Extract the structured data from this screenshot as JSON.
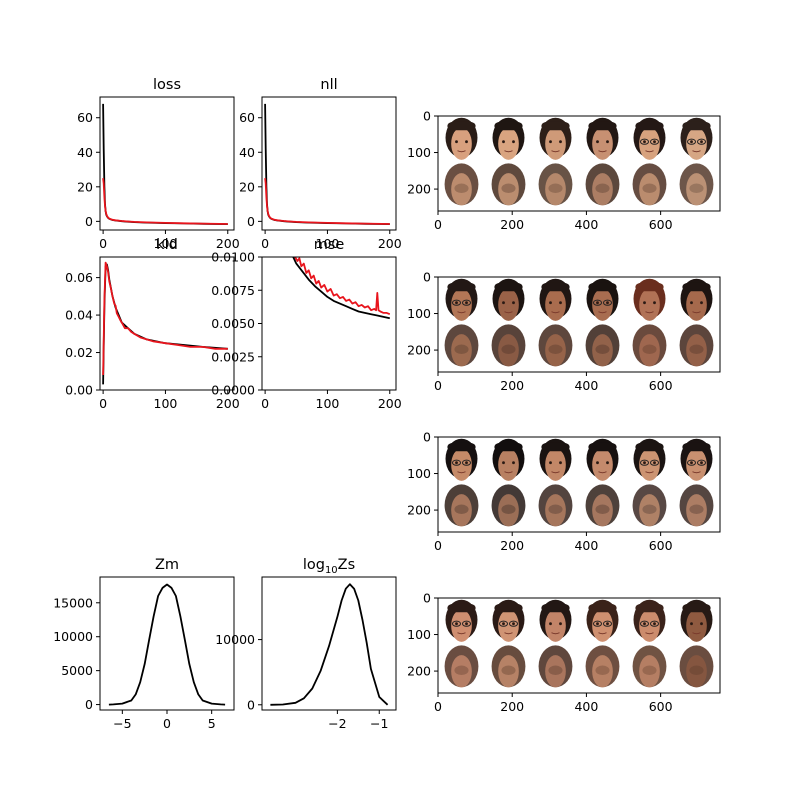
{
  "chart_data": [
    {
      "id": "loss",
      "type": "line",
      "title": "loss",
      "xlim": [
        -5,
        210
      ],
      "ylim": [
        -5,
        72
      ],
      "xticks": [
        0,
        100,
        200
      ],
      "yticks": [
        0,
        20,
        40,
        60
      ],
      "series": [
        {
          "color": "#000000",
          "x": [
            0,
            1,
            2,
            3,
            4,
            5,
            6,
            8,
            10,
            15,
            20,
            30,
            40,
            50,
            70,
            100,
            130,
            160,
            200
          ],
          "y": [
            68,
            42,
            20,
            10,
            6,
            4,
            3,
            2,
            1.5,
            0.8,
            0.5,
            0.1,
            -0.2,
            -0.4,
            -0.7,
            -1.0,
            -1.2,
            -1.4,
            -1.6
          ]
        },
        {
          "color": "#e8141c",
          "x": [
            0,
            1,
            2,
            3,
            4,
            5,
            6,
            8,
            10,
            15,
            20,
            30,
            40,
            50,
            70,
            100,
            130,
            160,
            200
          ],
          "y": [
            25,
            22,
            14,
            9,
            6,
            4.5,
            3.2,
            2.2,
            1.6,
            0.9,
            0.6,
            0.2,
            -0.1,
            -0.3,
            -0.6,
            -0.9,
            -1.1,
            -1.3,
            -1.5
          ]
        }
      ]
    },
    {
      "id": "nll",
      "type": "line",
      "title": "nll",
      "xlim": [
        -5,
        210
      ],
      "ylim": [
        -5,
        72
      ],
      "xticks": [
        0,
        100,
        200
      ],
      "yticks": [
        0,
        20,
        40,
        60
      ],
      "series": [
        {
          "color": "#000000",
          "x": [
            0,
            1,
            2,
            3,
            4,
            5,
            6,
            8,
            10,
            15,
            20,
            30,
            40,
            50,
            70,
            100,
            130,
            160,
            200
          ],
          "y": [
            68,
            42,
            20,
            10,
            6,
            4,
            3,
            2,
            1.5,
            0.8,
            0.5,
            0.1,
            -0.2,
            -0.4,
            -0.7,
            -1.0,
            -1.2,
            -1.4,
            -1.6
          ]
        },
        {
          "color": "#e8141c",
          "x": [
            0,
            1,
            2,
            3,
            4,
            5,
            6,
            8,
            10,
            15,
            20,
            30,
            40,
            50,
            70,
            100,
            130,
            160,
            200
          ],
          "y": [
            25,
            22,
            14,
            9,
            6,
            4.5,
            3.2,
            2.2,
            1.6,
            0.9,
            0.6,
            0.2,
            -0.1,
            -0.3,
            -0.6,
            -0.9,
            -1.1,
            -1.3,
            -1.5
          ]
        }
      ]
    },
    {
      "id": "kld",
      "type": "line",
      "title": "kld",
      "xlim": [
        -5,
        210
      ],
      "ylim": [
        0,
        0.071
      ],
      "xticks": [
        0,
        100,
        200
      ],
      "yticks": [
        0.0,
        0.02,
        0.04,
        0.06
      ],
      "ytick_labels": [
        "0.00",
        "0.02",
        "0.04",
        "0.06"
      ],
      "series": [
        {
          "color": "#000000",
          "x": [
            0,
            2,
            4,
            6,
            8,
            10,
            15,
            20,
            25,
            30,
            40,
            50,
            70,
            100,
            130,
            160,
            200
          ],
          "y": [
            0.003,
            0.045,
            0.066,
            0.067,
            0.064,
            0.059,
            0.05,
            0.044,
            0.04,
            0.036,
            0.033,
            0.03,
            0.027,
            0.025,
            0.024,
            0.023,
            0.022
          ]
        },
        {
          "color": "#e8141c",
          "x": [
            0,
            2,
            4,
            6,
            8,
            10,
            12,
            15,
            18,
            20,
            22,
            25,
            28,
            30,
            35,
            40,
            45,
            50,
            60,
            70,
            80,
            100,
            120,
            140,
            160,
            180,
            200
          ],
          "y": [
            0.008,
            0.048,
            0.068,
            0.066,
            0.063,
            0.058,
            0.055,
            0.05,
            0.046,
            0.045,
            0.041,
            0.039,
            0.037,
            0.036,
            0.033,
            0.033,
            0.031,
            0.03,
            0.028,
            0.027,
            0.026,
            0.025,
            0.024,
            0.023,
            0.023,
            0.022,
            0.022
          ]
        }
      ]
    },
    {
      "id": "mse",
      "type": "line",
      "title": "mse",
      "xlim": [
        -5,
        210
      ],
      "ylim": [
        0,
        0.01
      ],
      "xticks": [
        0,
        100,
        200
      ],
      "yticks": [
        0.0,
        0.0025,
        0.005,
        0.0075,
        0.01
      ],
      "ytick_labels": [
        "0.0000",
        "0.0025",
        "0.0050",
        "0.0075",
        "0.0100"
      ],
      "series": [
        {
          "color": "#000000",
          "x": [
            45,
            50,
            60,
            70,
            80,
            90,
            100,
            110,
            120,
            130,
            140,
            150,
            160,
            170,
            180,
            190,
            200
          ],
          "y": [
            0.01,
            0.0095,
            0.0089,
            0.0083,
            0.0078,
            0.0074,
            0.007,
            0.0067,
            0.0065,
            0.0063,
            0.0061,
            0.0059,
            0.0058,
            0.0057,
            0.0056,
            0.0055,
            0.0054
          ]
        },
        {
          "color": "#e8141c",
          "x": [
            48,
            52,
            55,
            58,
            62,
            66,
            70,
            74,
            78,
            82,
            86,
            90,
            95,
            100,
            105,
            110,
            115,
            120,
            125,
            130,
            135,
            140,
            145,
            150,
            155,
            160,
            165,
            170,
            175,
            178,
            180,
            182,
            185,
            190,
            195,
            200
          ],
          "y": [
            0.01,
            0.0097,
            0.0099,
            0.0093,
            0.0095,
            0.0088,
            0.009,
            0.0084,
            0.0086,
            0.008,
            0.0082,
            0.0077,
            0.0079,
            0.0074,
            0.0076,
            0.0071,
            0.0072,
            0.0069,
            0.007,
            0.0067,
            0.0068,
            0.0065,
            0.0066,
            0.0063,
            0.0064,
            0.0062,
            0.0063,
            0.006,
            0.0061,
            0.006,
            0.0073,
            0.006,
            0.0059,
            0.0058,
            0.0058,
            0.0057
          ]
        }
      ]
    },
    {
      "id": "zm",
      "type": "line",
      "title": "Zm",
      "xlim": [
        -7.5,
        7.5
      ],
      "ylim": [
        -800,
        18800
      ],
      "xticks": [
        -5,
        0,
        5
      ],
      "yticks": [
        0,
        5000,
        10000,
        15000
      ],
      "series": [
        {
          "color": "#000000",
          "x": [
            -6.5,
            -6,
            -5,
            -4,
            -3.5,
            -3,
            -2.5,
            -2,
            -1.5,
            -1,
            -0.5,
            0,
            0.5,
            1,
            1.5,
            2,
            2.5,
            3,
            3.5,
            4,
            5,
            6,
            6.5
          ],
          "y": [
            0,
            30,
            150,
            600,
            1500,
            3300,
            6000,
            9500,
            13000,
            16000,
            17200,
            17700,
            17200,
            16000,
            13000,
            9500,
            6000,
            3300,
            1500,
            600,
            150,
            30,
            0
          ]
        }
      ]
    },
    {
      "id": "log10zs",
      "type": "line",
      "title": "log",
      "title_sub": "10",
      "title_tail": "Zs",
      "xlim": [
        -3.8,
        -0.6
      ],
      "ylim": [
        -800,
        19600
      ],
      "xticks": [
        -2,
        -1
      ],
      "yticks": [
        0,
        10000
      ],
      "series": [
        {
          "color": "#000000",
          "x": [
            -3.6,
            -3.3,
            -3.0,
            -2.8,
            -2.6,
            -2.4,
            -2.2,
            -2.0,
            -1.9,
            -1.8,
            -1.7,
            -1.6,
            -1.5,
            -1.4,
            -1.3,
            -1.2,
            -1.0,
            -0.8
          ],
          "y": [
            0,
            50,
            300,
            1000,
            2500,
            5200,
            9000,
            13500,
            16000,
            17800,
            18500,
            17800,
            16000,
            13000,
            9500,
            5500,
            1200,
            0
          ]
        }
      ]
    },
    {
      "id": "faces1",
      "type": "image",
      "xlim": [
        0,
        760
      ],
      "ylim": [
        260,
        0
      ],
      "xticks": [
        0,
        200,
        400,
        600
      ],
      "yticks": [
        0,
        100,
        200
      ],
      "faces": [
        {
          "top": "#2a1d17",
          "bottom": "#5a3c2d",
          "skin": "#d8a07e",
          "glasses": false
        },
        {
          "top": "#1f1612",
          "bottom": "#4e3528",
          "skin": "#d9a480",
          "glasses": false
        },
        {
          "top": "#2d1f18",
          "bottom": "#584032",
          "skin": "#cf9a78",
          "glasses": false
        },
        {
          "top": "#221713",
          "bottom": "#4a3428",
          "skin": "#c79072",
          "glasses": false
        },
        {
          "top": "#241815",
          "bottom": "#553a2e",
          "skin": "#d7a27e",
          "glasses": true
        },
        {
          "top": "#2c201b",
          "bottom": "#5d4436",
          "skin": "#d6a684",
          "glasses": true
        }
      ]
    },
    {
      "id": "faces2",
      "type": "image",
      "xlim": [
        0,
        760
      ],
      "ylim": [
        260,
        0
      ],
      "xticks": [
        0,
        200,
        400,
        600
      ],
      "yticks": [
        0,
        100,
        200
      ],
      "faces": [
        {
          "top": "#221815",
          "bottom": "#4b3329",
          "skin": "#b27656",
          "glasses": true
        },
        {
          "top": "#1c1411",
          "bottom": "#462f25",
          "skin": "#9a6248",
          "glasses": false
        },
        {
          "top": "#201613",
          "bottom": "#4c3328",
          "skin": "#a96c4e",
          "glasses": false
        },
        {
          "top": "#1a1310",
          "bottom": "#3f2b22",
          "skin": "#a86d50",
          "glasses": true
        },
        {
          "top": "#6a2e1e",
          "bottom": "#5a3628",
          "skin": "#b17256",
          "glasses": false
        },
        {
          "top": "#1d1411",
          "bottom": "#4a3127",
          "skin": "#a5694c",
          "glasses": false
        }
      ]
    },
    {
      "id": "faces3",
      "type": "image",
      "xlim": [
        0,
        760
      ],
      "ylim": [
        260,
        0
      ],
      "xticks": [
        0,
        200,
        400,
        600
      ],
      "yticks": [
        0,
        100,
        200
      ],
      "faces": [
        {
          "top": "#151010",
          "bottom": "#3a2a22",
          "skin": "#c58a68",
          "glasses": true
        },
        {
          "top": "#120e0e",
          "bottom": "#2f2420",
          "skin": "#b88062",
          "glasses": false
        },
        {
          "top": "#1a1311",
          "bottom": "#40302a",
          "skin": "#c28767",
          "glasses": false
        },
        {
          "top": "#171110",
          "bottom": "#3b2c26",
          "skin": "#c48a6c",
          "glasses": false
        },
        {
          "top": "#1b1412",
          "bottom": "#463430",
          "skin": "#cc9472",
          "glasses": true
        },
        {
          "top": "#1a1312",
          "bottom": "#43322c",
          "skin": "#c99070",
          "glasses": true
        }
      ]
    },
    {
      "id": "faces4",
      "type": "image",
      "xlim": [
        0,
        760
      ],
      "ylim": [
        260,
        0
      ],
      "xticks": [
        0,
        200,
        400,
        600
      ],
      "yticks": [
        0,
        100,
        200
      ],
      "faces": [
        {
          "top": "#2c1b16",
          "bottom": "#5a3a2c",
          "skin": "#cf8e70",
          "glasses": true
        },
        {
          "top": "#2a1a15",
          "bottom": "#573829",
          "skin": "#d09474",
          "glasses": true
        },
        {
          "top": "#221714",
          "bottom": "#4e3328",
          "skin": "#c28468",
          "glasses": false
        },
        {
          "top": "#3a2219",
          "bottom": "#5e3c2c",
          "skin": "#cf9070",
          "glasses": true
        },
        {
          "top": "#3b231b",
          "bottom": "#60402f",
          "skin": "#cc8c6d",
          "glasses": true
        },
        {
          "top": "#271a15",
          "bottom": "#5a3a2b",
          "skin": "#8f5a40",
          "glasses": false
        }
      ]
    }
  ]
}
